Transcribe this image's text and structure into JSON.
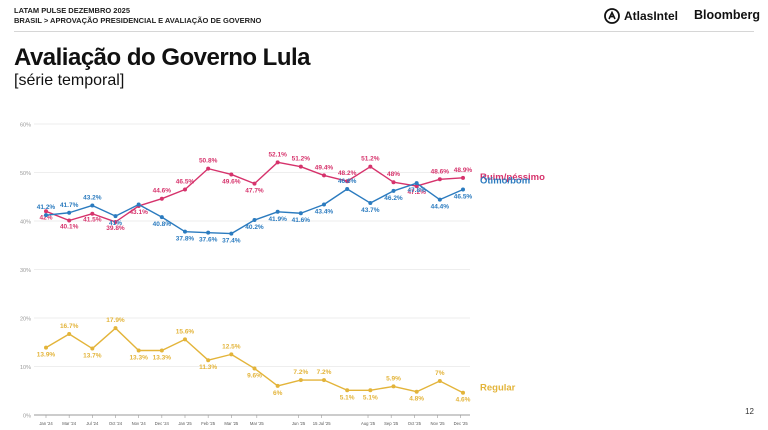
{
  "header": {
    "line1": "LATAM PULSE DEZEMBRO 2025",
    "line2": "BRASIL > APROVAÇÃO PRESIDENCIAL E AVALIAÇÃO DE GOVERNO"
  },
  "logos": {
    "atlas": "AtlasIntel",
    "bloomberg": "Bloomberg"
  },
  "title": "Avaliação do Governo Lula",
  "subtitle": "[série temporal]",
  "page_number": "12",
  "colors": {
    "ruim": "#d6336c",
    "otimo": "#2b7bbf",
    "regular": "#e3b43a",
    "grid": "#e8e8e8",
    "axis": "#9a9a9a"
  },
  "chart_data": {
    "type": "line",
    "title": "Avaliação do Governo Lula",
    "ylim": [
      0,
      60
    ],
    "y_ticks": [
      0,
      10,
      20,
      30,
      40,
      50,
      60
    ],
    "y_tick_labels": [
      "0%",
      "10%",
      "20%",
      "30%",
      "40%",
      "50%",
      "60%"
    ],
    "grid": true,
    "x_points": 19,
    "x_tick_labels": [
      "Jan '24",
      "Mar '24",
      "Jul '24",
      "Oct '24",
      "Nov '24",
      "Dec '24",
      "Jan '25",
      "Feb '25",
      "Mar '25",
      "Mar '25",
      "Jun '25",
      "15 Jul '25",
      "Aug '25",
      "Sep '25",
      "Oct '25",
      "Nov '25",
      "Dec '25"
    ],
    "x_tick_positions": [
      0,
      1,
      2,
      3,
      4,
      5,
      6,
      7,
      8,
      9.1,
      10.9,
      11.9,
      13.9,
      14.9,
      15.9,
      16.9,
      17.9
    ],
    "series": [
      {
        "name": "Ruim/péssimo",
        "color_key": "ruim",
        "x": [
          0,
          1,
          2,
          3,
          4,
          5,
          6,
          7,
          8,
          9,
          10,
          11,
          12,
          13,
          14,
          15,
          16,
          17,
          18
        ],
        "values": [
          42,
          40.1,
          41.5,
          39.8,
          43.1,
          44.6,
          46.5,
          50.8,
          49.6,
          47.7,
          52.1,
          51.2,
          49.4,
          48.2,
          51.2,
          48,
          47.2,
          48.6,
          48.9
        ],
        "labels": [
          "42%",
          "40.1%",
          "41.5%",
          "39.8%",
          "43.1%",
          "44.6%",
          "46.5%",
          "50.8%",
          "49.6%",
          "47.7%",
          "52.1%",
          "51.2%",
          "49.4%",
          "48.2%",
          "51.2%",
          "48%",
          "47.2%",
          "48.6%",
          "48.9%"
        ]
      },
      {
        "name": "Ótimo/bom",
        "color_key": "otimo",
        "x": [
          0,
          1,
          2,
          3,
          4,
          5,
          6,
          7,
          8,
          9,
          10,
          11,
          12,
          13,
          14,
          15,
          16,
          17,
          18
        ],
        "values": [
          41.2,
          41.7,
          43.2,
          41,
          43.4,
          40.8,
          37.8,
          37.6,
          37.4,
          40.2,
          41.9,
          41.6,
          43.4,
          46.6,
          43.7,
          46.2,
          47.8,
          44.4,
          46.5
        ],
        "labels": [
          "41.2%",
          "41.7%",
          "43.2%",
          "41%",
          "",
          "40.8%",
          "37.8%",
          "37.6%",
          "37.4%",
          "40.2%",
          "41.9%",
          "41.6%",
          "43.4%",
          "46.6%",
          "43.7%",
          "46.2%",
          "47.8%",
          "44.4%",
          "46.5%"
        ]
      },
      {
        "name": "Regular",
        "color_key": "regular",
        "x": [
          0,
          1,
          2,
          3,
          4,
          5,
          6,
          7,
          8,
          9,
          10,
          11,
          12,
          13,
          14,
          15,
          16,
          17,
          18
        ],
        "values": [
          13.9,
          16.7,
          13.7,
          17.9,
          13.3,
          13.3,
          15.6,
          11.3,
          12.5,
          9.6,
          6,
          7.2,
          7.2,
          5.1,
          5.1,
          5.9,
          4.8,
          7,
          4.6
        ],
        "labels": [
          "13.9%",
          "16.7%",
          "13.7%",
          "17.9%",
          "13.3%",
          "13.3%",
          "15.6%",
          "11.3%",
          "12.5%",
          "9.6%",
          "6%",
          "7.2%",
          "7.2%",
          "5.1%",
          "5.1%",
          "5.9%",
          "4.8%",
          "7%",
          "4.6%"
        ]
      }
    ]
  }
}
